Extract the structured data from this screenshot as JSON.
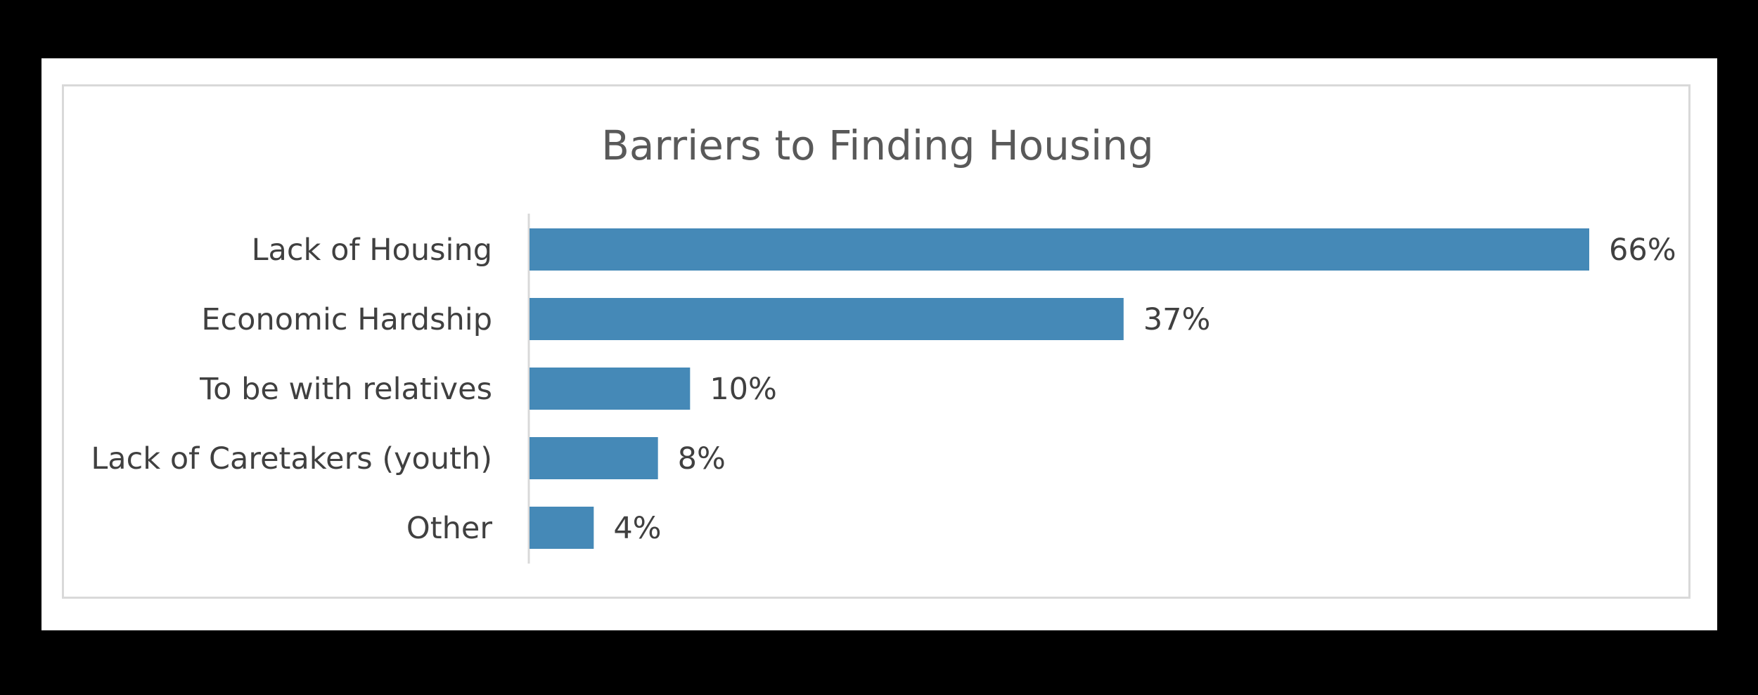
{
  "chart_data": {
    "type": "bar",
    "orientation": "horizontal",
    "title": "Barriers to Finding Housing",
    "categories": [
      "Lack of Housing",
      "Economic Hardship",
      "To be with relatives",
      "Lack of Caretakers (youth)",
      "Other"
    ],
    "values": [
      66,
      37,
      10,
      8,
      4
    ],
    "data_labels": [
      "66%",
      "37%",
      "10%",
      "8%",
      "4%"
    ],
    "xlabel": "",
    "ylabel": "",
    "xlim": [
      0,
      66
    ],
    "grid": false,
    "legend": "none",
    "bar_color": "#4589b7"
  }
}
